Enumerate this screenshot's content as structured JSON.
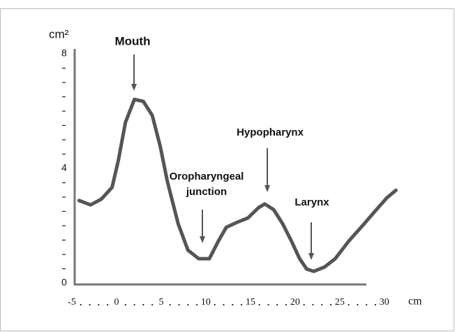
{
  "chart_data": {
    "type": "line",
    "y_unit": "cm²",
    "x_unit": "cm",
    "x": [
      -4.2,
      -2.9,
      -1.7,
      -0.5,
      0.2,
      1.0,
      2.0,
      3.0,
      4.0,
      4.9,
      5.7,
      6.9,
      8.0,
      9.2,
      10.4,
      11.4,
      12.3,
      13.5,
      14.7,
      15.9,
      16.6,
      17.6,
      18.6,
      19.6,
      20.5,
      21.3,
      22.1,
      23.3,
      24.5,
      26.0,
      27.6,
      29.1,
      30.3,
      31.3
    ],
    "series": [
      {
        "color": "#555555",
        "values": [
          2.88,
          2.73,
          2.93,
          3.34,
          4.27,
          5.61,
          6.41,
          6.34,
          5.85,
          4.76,
          3.54,
          2.07,
          1.15,
          0.85,
          0.85,
          1.46,
          1.95,
          2.12,
          2.27,
          2.63,
          2.76,
          2.56,
          2.07,
          1.46,
          0.85,
          0.49,
          0.41,
          0.56,
          0.85,
          1.46,
          2.02,
          2.56,
          2.98,
          3.24
        ]
      }
    ],
    "xlim": [
      -5,
      31.5
    ],
    "ylim": [
      0,
      8
    ],
    "xticks": [
      {
        "value": -5,
        "label": "-5"
      },
      0,
      5,
      10,
      15,
      20,
      25,
      30
    ],
    "minor_xticks": [
      -4,
      -3,
      -2,
      -1,
      1,
      2,
      3,
      4,
      6,
      7,
      8,
      9,
      11,
      12,
      13,
      14,
      16,
      17,
      18,
      19,
      21,
      22,
      23,
      24,
      26,
      27,
      28,
      29
    ],
    "yticks": [
      0,
      4,
      8
    ],
    "minor_yticks": [
      0.5,
      1,
      1.5,
      2,
      2.5,
      3,
      3.5,
      4.5,
      5,
      5.5,
      6,
      6.5,
      7,
      7.5
    ],
    "annotations": [
      {
        "lines": [
          "Mouth"
        ]
      },
      {
        "lines": [
          "Oropharyngeal",
          "junction"
        ]
      },
      {
        "lines": [
          "Hypopharynx"
        ]
      },
      {
        "lines": [
          "Larynx"
        ]
      }
    ]
  }
}
